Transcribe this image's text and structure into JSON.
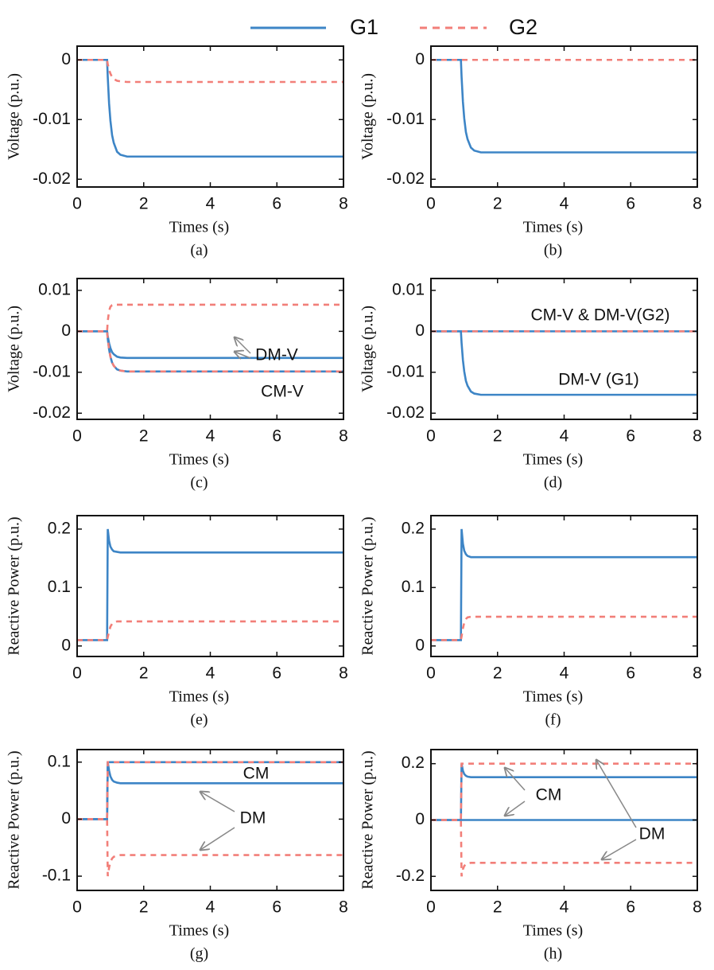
{
  "chart_data": [
    {
      "type": "line",
      "xlabel": "Times (s)",
      "ylabel": "Voltage (p.u.)",
      "caption": "(a)",
      "x": [
        0,
        0.9,
        0.92,
        0.96,
        1.0,
        1.05,
        1.1,
        1.2,
        1.3,
        1.5,
        2,
        4,
        6,
        8
      ],
      "xlim": [
        0,
        8
      ],
      "xticks": [
        0,
        2,
        4,
        6,
        8
      ],
      "ylim": [
        -0.0213,
        0.0023
      ],
      "yticks": [
        -0.02,
        -0.01,
        0
      ],
      "series": [
        {
          "name": "G1",
          "color": "#3d85c6",
          "dash": false,
          "values": [
            0,
            0,
            -0.0029,
            -0.0073,
            -0.0102,
            -0.0126,
            -0.0139,
            -0.0154,
            -0.0159,
            -0.0162,
            -0.0162,
            -0.0162,
            -0.0162,
            -0.0162
          ]
        },
        {
          "name": "G2",
          "color": "#f27f79",
          "dash": true,
          "values": [
            0,
            0,
            -0.0007,
            -0.0017,
            -0.0023,
            -0.0029,
            -0.0032,
            -0.0035,
            -0.0036,
            -0.0037,
            -0.0037,
            -0.0037,
            -0.0037,
            -0.0037
          ]
        }
      ]
    },
    {
      "type": "line",
      "xlabel": "Times (s)",
      "ylabel": "Voltage (p.u.)",
      "caption": "(b)",
      "x": [
        0,
        0.9,
        0.92,
        0.96,
        1.0,
        1.05,
        1.1,
        1.2,
        1.3,
        1.5,
        2,
        4,
        6,
        8
      ],
      "xlim": [
        0,
        8
      ],
      "xticks": [
        0,
        2,
        4,
        6,
        8
      ],
      "ylim": [
        -0.0213,
        0.0023
      ],
      "yticks": [
        -0.02,
        -0.01,
        0
      ],
      "series": [
        {
          "color": "#3d85c6",
          "dash": false,
          "values": [
            0,
            0,
            -0.0028,
            -0.007,
            -0.0098,
            -0.0121,
            -0.0133,
            -0.0147,
            -0.0152,
            -0.0155,
            -0.0155,
            -0.0155,
            -0.0155,
            -0.0155
          ]
        },
        {
          "color": "#f27f79",
          "dash": true,
          "values": [
            0,
            0,
            0,
            0,
            0,
            0,
            0,
            0,
            0,
            0,
            0,
            0,
            0,
            0
          ]
        }
      ]
    },
    {
      "type": "line",
      "xlabel": "Times (s)",
      "ylabel": "Voltage (p.u.)",
      "caption": "(c)",
      "x": [
        0,
        0.9,
        0.92,
        0.96,
        1.0,
        1.05,
        1.1,
        1.2,
        1.3,
        1.5,
        2,
        4,
        6,
        8
      ],
      "xlim": [
        0,
        8
      ],
      "xticks": [
        0,
        2,
        4,
        6,
        8
      ],
      "ylim": [
        -0.0215,
        0.0129
      ],
      "yticks": [
        -0.02,
        -0.01,
        0,
        0.01
      ],
      "annotations": [
        "DM-V",
        "CM-V"
      ],
      "series": [
        {
          "color": "#3d85c6",
          "dash": false,
          "values": [
            0,
            0,
            -0.0012,
            -0.0029,
            -0.0041,
            -0.0051,
            -0.0056,
            -0.0062,
            -0.0064,
            -0.0065,
            -0.0065,
            -0.0065,
            -0.0065,
            -0.0065
          ]
        },
        {
          "color": "#3d85c6",
          "dash": false,
          "values": [
            0,
            0,
            -0.0018,
            -0.0044,
            -0.0062,
            -0.0076,
            -0.0084,
            -0.0093,
            -0.0096,
            -0.0098,
            -0.0098,
            -0.0098,
            -0.0098,
            -0.0098
          ]
        },
        {
          "color": "#f27f79",
          "dash": true,
          "values": [
            0,
            0,
            0.0025,
            0.005,
            0.006,
            0.0064,
            0.0065,
            0.0065,
            0.0065,
            0.0065,
            0.0065,
            0.0065,
            0.0065,
            0.0065
          ]
        },
        {
          "color": "#f27f79",
          "dash": true,
          "values": [
            0,
            0,
            -0.0018,
            -0.0044,
            -0.0062,
            -0.0076,
            -0.0084,
            -0.0093,
            -0.0096,
            -0.0098,
            -0.0098,
            -0.0098,
            -0.0098,
            -0.0098
          ]
        }
      ]
    },
    {
      "type": "line",
      "xlabel": "Times (s)",
      "ylabel": "Voltage (p.u.)",
      "caption": "(d)",
      "x": [
        0,
        0.9,
        0.92,
        0.96,
        1.0,
        1.05,
        1.1,
        1.2,
        1.3,
        1.5,
        2,
        4,
        6,
        8
      ],
      "xlim": [
        0,
        8
      ],
      "xticks": [
        0,
        2,
        4,
        6,
        8
      ],
      "ylim": [
        -0.0215,
        0.0129
      ],
      "yticks": [
        -0.02,
        -0.01,
        0,
        0.01
      ],
      "annotations": [
        "CM-V & DM-V(G2)",
        "DM-V (G1)"
      ],
      "series": [
        {
          "color": "#3d85c6",
          "dash": false,
          "values": [
            0,
            0,
            -0.0028,
            -0.007,
            -0.0098,
            -0.0121,
            -0.0133,
            -0.0147,
            -0.0152,
            -0.0155,
            -0.0155,
            -0.0155,
            -0.0155,
            -0.0155
          ]
        },
        {
          "color": "#3d85c6",
          "dash": false,
          "values": [
            0,
            0,
            0,
            0,
            0,
            0,
            0,
            0,
            0,
            0,
            0,
            0,
            0,
            0
          ]
        },
        {
          "color": "#f27f79",
          "dash": true,
          "values": [
            0,
            0,
            0,
            0,
            0,
            0,
            0,
            0,
            0,
            0,
            0,
            0,
            0,
            0
          ]
        }
      ]
    },
    {
      "type": "line",
      "xlabel": "Times (s)",
      "ylabel": "Reactive Power (p.u.)",
      "caption": "(e)",
      "x": [
        0,
        0.9,
        0.92,
        0.96,
        1.0,
        1.05,
        1.1,
        1.2,
        1.3,
        1.5,
        2,
        4,
        6,
        8
      ],
      "xlim": [
        0,
        8
      ],
      "xticks": [
        0,
        2,
        4,
        6,
        8
      ],
      "ylim": [
        -0.018,
        0.223
      ],
      "yticks": [
        0,
        0.1,
        0.2
      ],
      "series": [
        {
          "color": "#3d85c6",
          "dash": false,
          "values": [
            0.01,
            0.01,
            0.2,
            0.18,
            0.17,
            0.165,
            0.162,
            0.161,
            0.16,
            0.16,
            0.16,
            0.16,
            0.16,
            0.16
          ]
        },
        {
          "color": "#f27f79",
          "dash": true,
          "values": [
            0.01,
            0.01,
            0.015,
            0.025,
            0.033,
            0.038,
            0.04,
            0.042,
            0.042,
            0.042,
            0.042,
            0.042,
            0.042,
            0.042
          ]
        }
      ]
    },
    {
      "type": "line",
      "xlabel": "Times (s)",
      "ylabel": "Reactive Power (p.u.)",
      "caption": "(f)",
      "x": [
        0,
        0.9,
        0.92,
        0.96,
        1.0,
        1.05,
        1.1,
        1.2,
        1.3,
        1.5,
        2,
        4,
        6,
        8
      ],
      "xlim": [
        0,
        8
      ],
      "xticks": [
        0,
        2,
        4,
        6,
        8
      ],
      "ylim": [
        -0.018,
        0.223
      ],
      "yticks": [
        0,
        0.1,
        0.2
      ],
      "series": [
        {
          "color": "#3d85c6",
          "dash": false,
          "values": [
            0.01,
            0.01,
            0.2,
            0.175,
            0.163,
            0.157,
            0.154,
            0.152,
            0.152,
            0.152,
            0.152,
            0.152,
            0.152,
            0.152
          ]
        },
        {
          "color": "#f27f79",
          "dash": true,
          "values": [
            0.01,
            0.01,
            0.016,
            0.03,
            0.04,
            0.046,
            0.049,
            0.05,
            0.05,
            0.05,
            0.05,
            0.05,
            0.05,
            0.05
          ]
        }
      ]
    },
    {
      "type": "line",
      "xlabel": "Times (s)",
      "ylabel": "Reactive Power (p.u.)",
      "caption": "(g)",
      "x": [
        0,
        0.9,
        0.92,
        0.96,
        1.0,
        1.05,
        1.1,
        1.2,
        1.3,
        1.5,
        2,
        4,
        6,
        8
      ],
      "xlim": [
        0,
        8
      ],
      "xticks": [
        0,
        2,
        4,
        6,
        8
      ],
      "ylim": [
        -0.125,
        0.122
      ],
      "yticks": [
        -0.1,
        0,
        0.1
      ],
      "annotations": [
        "CM",
        "DM"
      ],
      "series": [
        {
          "color": "#3d85c6",
          "dash": false,
          "values": [
            0,
            0,
            0.1,
            0.085,
            0.075,
            0.069,
            0.066,
            0.064,
            0.063,
            0.063,
            0.063,
            0.063,
            0.063,
            0.063
          ]
        },
        {
          "color": "#3d85c6",
          "dash": false,
          "values": [
            0,
            0,
            0.1,
            0.1,
            0.1,
            0.1,
            0.1,
            0.1,
            0.1,
            0.1,
            0.1,
            0.1,
            0.1,
            0.1
          ]
        },
        {
          "color": "#f27f79",
          "dash": true,
          "values": [
            0,
            0,
            -0.1,
            -0.085,
            -0.075,
            -0.069,
            -0.066,
            -0.064,
            -0.063,
            -0.063,
            -0.063,
            -0.063,
            -0.063,
            -0.063
          ]
        },
        {
          "color": "#f27f79",
          "dash": true,
          "values": [
            0,
            0,
            0.1,
            0.1,
            0.1,
            0.1,
            0.1,
            0.1,
            0.1,
            0.1,
            0.1,
            0.1,
            0.1,
            0.1
          ]
        }
      ]
    },
    {
      "type": "line",
      "xlabel": "Times (s)",
      "ylabel": "Reactive Power (p.u.)",
      "caption": "(h)",
      "x": [
        0,
        0.9,
        0.92,
        0.96,
        1.0,
        1.05,
        1.1,
        1.2,
        1.3,
        1.5,
        2,
        4,
        6,
        8
      ],
      "xlim": [
        0,
        8
      ],
      "xticks": [
        0,
        2,
        4,
        6,
        8
      ],
      "ylim": [
        -0.25,
        0.25
      ],
      "yticks": [
        -0.2,
        0,
        0.2
      ],
      "annotations": [
        "CM",
        "DM"
      ],
      "series": [
        {
          "color": "#3d85c6",
          "dash": false,
          "values": [
            0,
            0,
            0.2,
            0.175,
            0.163,
            0.157,
            0.154,
            0.152,
            0.152,
            0.152,
            0.152,
            0.152,
            0.152,
            0.152
          ]
        },
        {
          "color": "#3d85c6",
          "dash": false,
          "values": [
            0,
            0,
            0,
            0,
            0,
            0,
            0,
            0,
            0,
            0,
            0,
            0,
            0,
            0
          ]
        },
        {
          "color": "#f27f79",
          "dash": true,
          "values": [
            0,
            0,
            -0.2,
            -0.175,
            -0.163,
            -0.157,
            -0.154,
            -0.152,
            -0.152,
            -0.152,
            -0.152,
            -0.152,
            -0.152,
            -0.152
          ]
        },
        {
          "color": "#f27f79",
          "dash": true,
          "values": [
            0,
            0,
            0.2,
            0.2,
            0.2,
            0.2,
            0.2,
            0.2,
            0.2,
            0.2,
            0.2,
            0.2,
            0.2,
            0.2
          ]
        }
      ]
    }
  ]
}
